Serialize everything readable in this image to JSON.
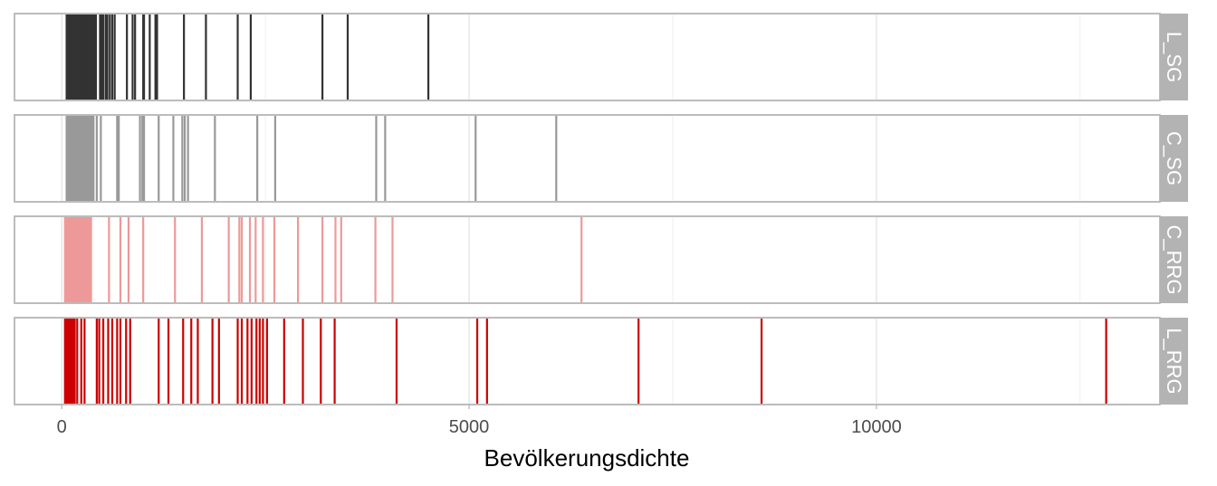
{
  "chart_data": {
    "type": "rug",
    "xlabel": "Bevölkerungsdichte",
    "xlim": [
      -580,
      13480
    ],
    "x_ticks": [
      0,
      5000,
      10000
    ],
    "x_tick_labels": [
      "0",
      "5000",
      "10000"
    ],
    "x_minor_gridlines": [
      2500,
      7500,
      12500
    ],
    "grid": true,
    "panels": [
      {
        "name": "L_SG",
        "color": "#333333",
        "values": [
          60,
          75,
          90,
          105,
          120,
          135,
          150,
          165,
          180,
          195,
          210,
          225,
          240,
          255,
          270,
          285,
          300,
          315,
          330,
          345,
          360,
          375,
          390,
          405,
          420,
          470,
          490,
          510,
          540,
          560,
          590,
          620,
          650,
          800,
          870,
          900,
          1000,
          1010,
          1080,
          1150,
          1170,
          1500,
          1770,
          2160,
          2320,
          3200,
          3510,
          4500
        ]
      },
      {
        "name": "C_SG",
        "color": "#999999",
        "values": [
          60,
          75,
          90,
          105,
          120,
          135,
          150,
          165,
          180,
          195,
          210,
          225,
          240,
          255,
          270,
          285,
          300,
          315,
          330,
          345,
          360,
          375,
          390,
          430,
          480,
          680,
          700,
          960,
          990,
          1010,
          1190,
          1370,
          1480,
          1510,
          1550,
          1880,
          2400,
          2620,
          3860,
          3970,
          5080,
          6070
        ]
      },
      {
        "name": "C_RRG",
        "color": "#EE9999",
        "values": [
          40,
          60,
          80,
          100,
          120,
          140,
          160,
          180,
          200,
          220,
          240,
          260,
          280,
          300,
          320,
          340,
          360,
          580,
          720,
          820,
          1000,
          1390,
          1720,
          2050,
          2180,
          2210,
          2310,
          2380,
          2470,
          2610,
          2900,
          3200,
          3360,
          3430,
          3850,
          4060,
          6380
        ]
      },
      {
        "name": "L_RRG",
        "color": "#CC0000",
        "values": [
          40,
          60,
          80,
          100,
          120,
          140,
          160,
          190,
          240,
          280,
          430,
          460,
          510,
          570,
          620,
          680,
          720,
          790,
          840,
          1190,
          1310,
          1490,
          1590,
          1670,
          1850,
          1930,
          2160,
          2210,
          2280,
          2330,
          2390,
          2430,
          2470,
          2520,
          2730,
          2960,
          3180,
          3350,
          4110,
          5100,
          5220,
          7080,
          8590,
          12820
        ]
      }
    ]
  }
}
